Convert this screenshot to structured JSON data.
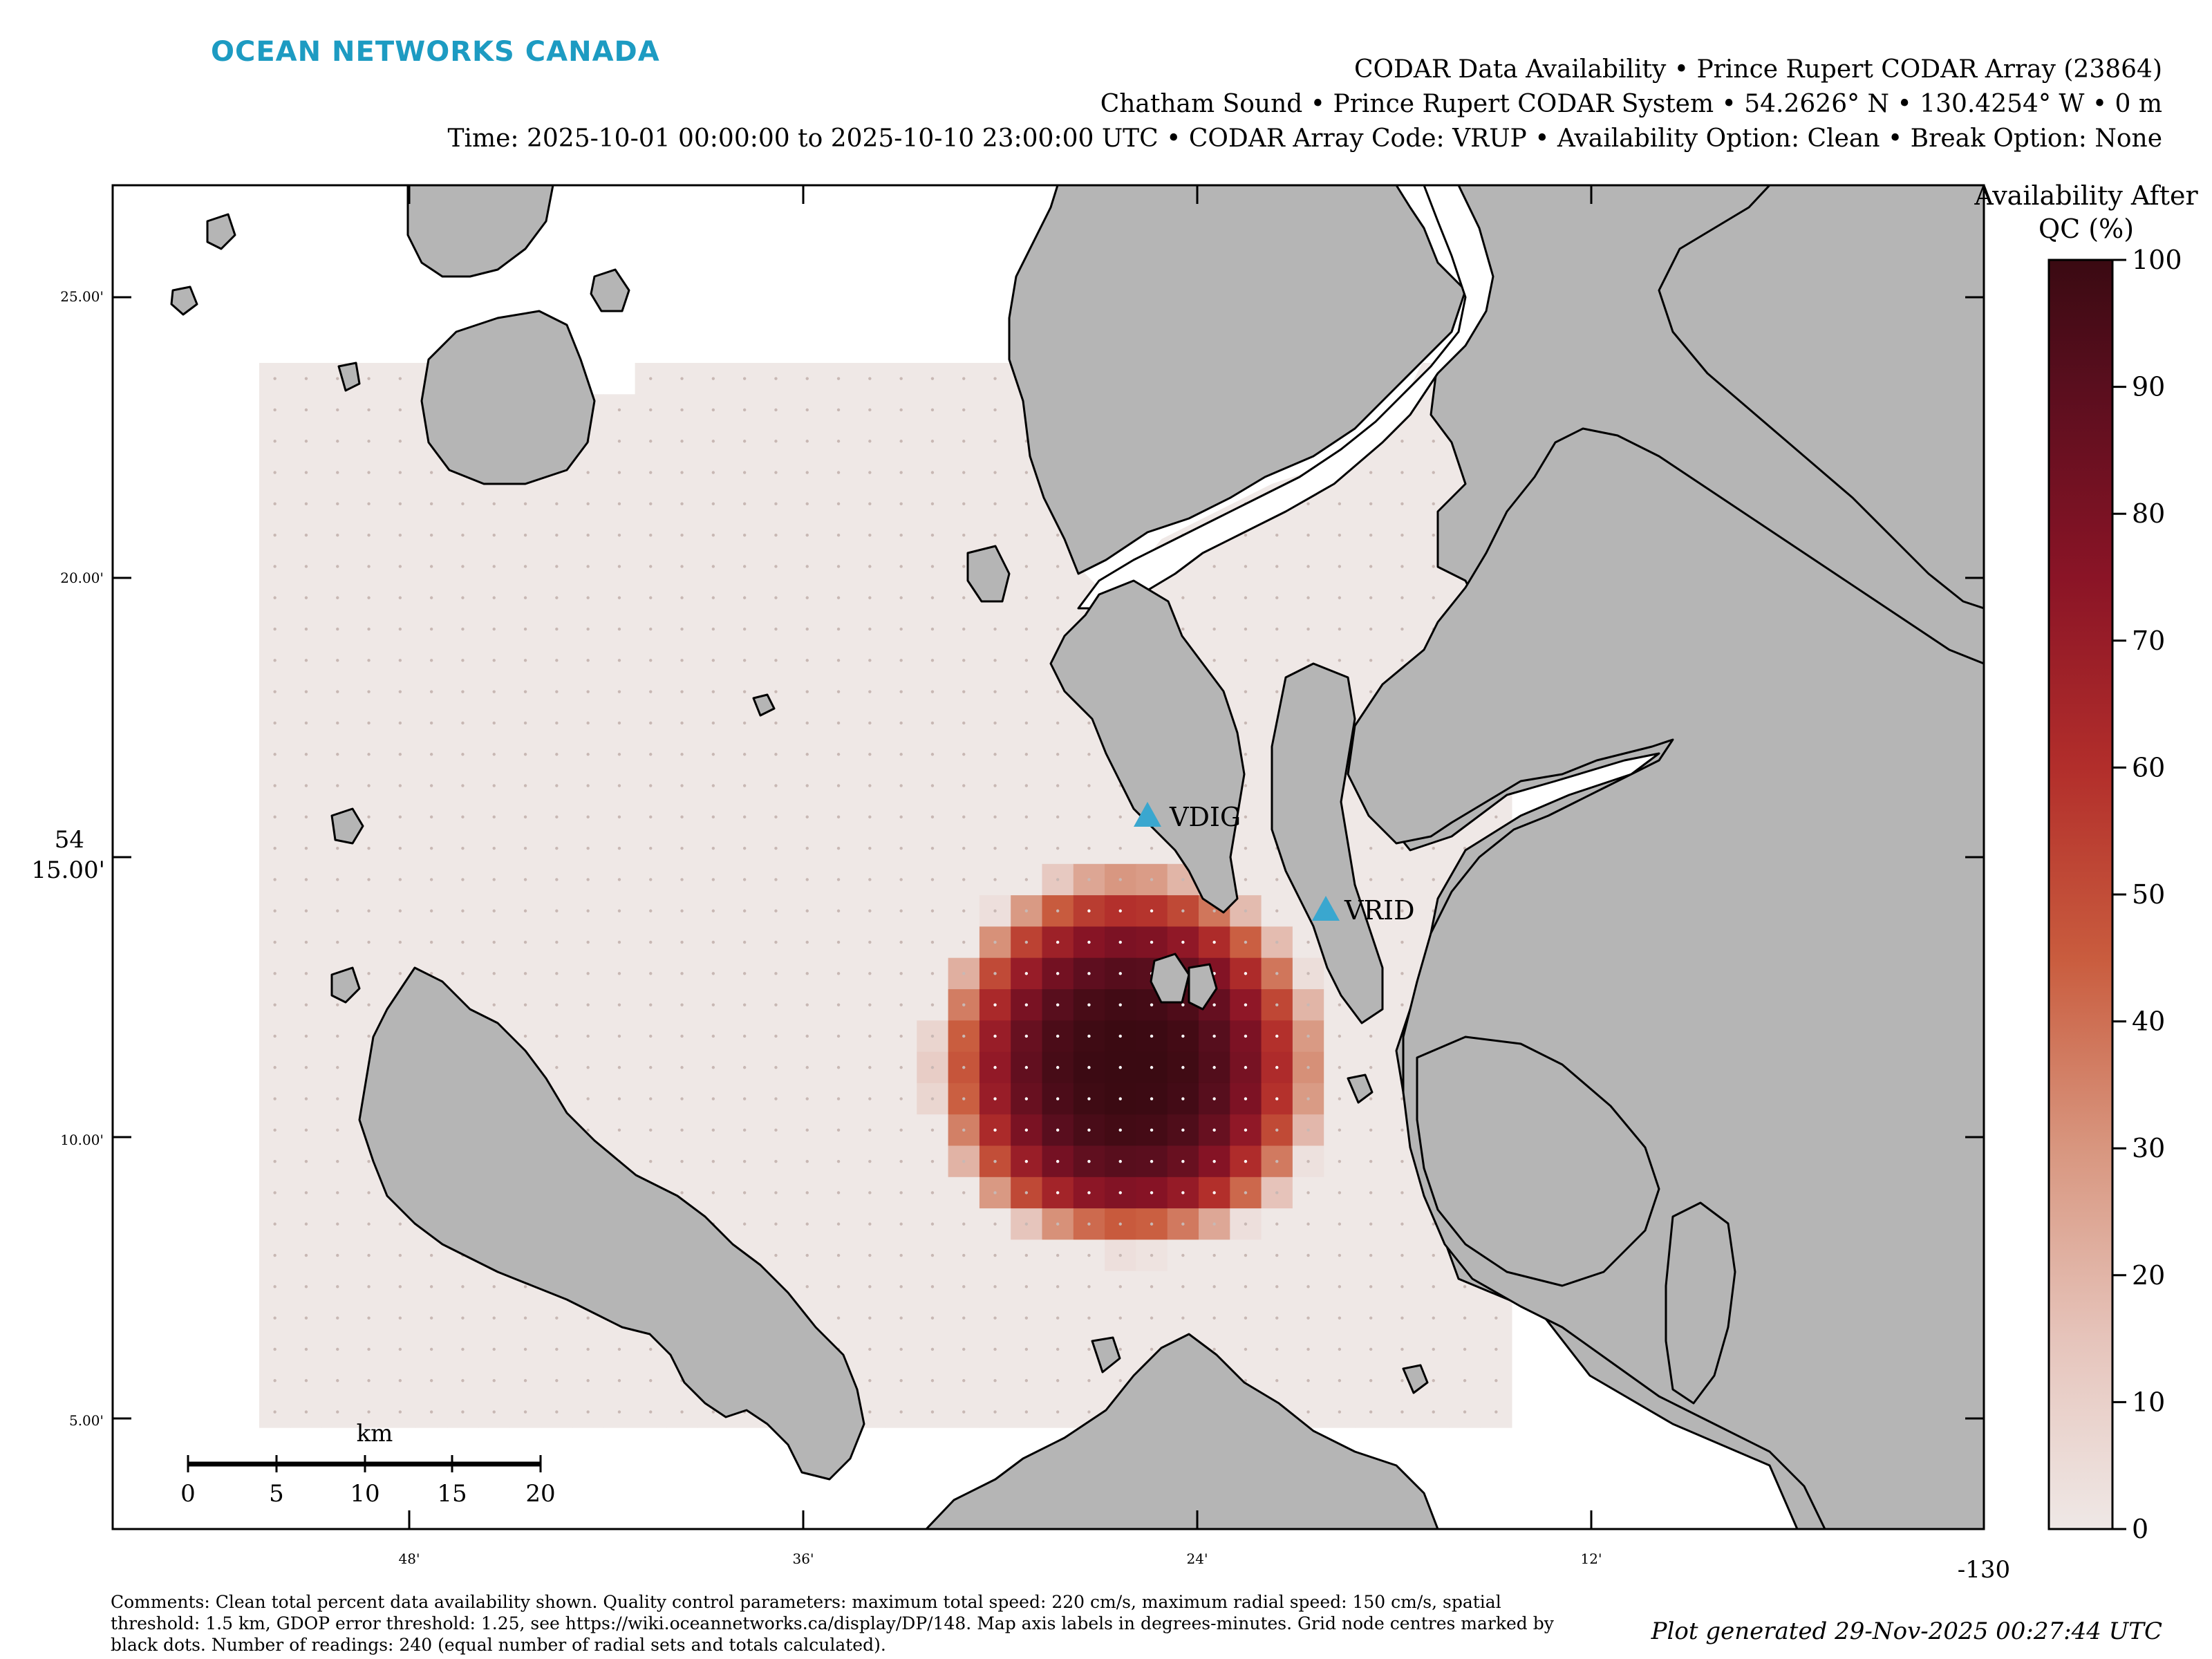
{
  "header": {
    "logo": "OCEAN NETWORKS CANADA",
    "title_line1": "CODAR Data Availability • Prince Rupert CODAR Array (23864)",
    "title_line2": "Chatham Sound • Prince Rupert CODAR System • 54.2626° N • 130.4254° W • 0 m",
    "title_line3": "Time: 2025-10-01 00:00:00 to 2025-10-10 23:00:00 UTC • CODAR Array Code: VRUP • Availability Option: Clean • Break Option: None"
  },
  "map": {
    "y_ticks": [
      "25.00'",
      "20.00'",
      "15.00'",
      "10.00'",
      "5.00'"
    ],
    "y_major_label": "54",
    "x_ticks": [
      "48'",
      "36'",
      "24'",
      "12'"
    ],
    "x_major_label": "-130",
    "stations": [
      {
        "name": "VDIG"
      },
      {
        "name": "VRID"
      }
    ],
    "scale_bar": {
      "unit": "km",
      "ticks": [
        "0",
        "5",
        "10",
        "15",
        "20"
      ]
    }
  },
  "colorbar": {
    "title_line1": "Availability After",
    "title_line2": "QC (%)",
    "ticks": [
      "100",
      "90",
      "80",
      "70",
      "60",
      "50",
      "40",
      "30",
      "20",
      "10",
      "0"
    ]
  },
  "footer": {
    "comments": "Comments: Clean total percent data availability shown. Quality control parameters: maximum total speed: 220 cm/s, maximum radial speed: 150 cm/s, spatial threshold: 1.5 km, GDOP error threshold: 1.25, see https://wiki.oceannetworks.ca/display/DP/148. Map axis labels in degrees-minutes. Grid node centres marked by black dots. Number of readings: 240 (equal number of radial sets and totals calculated).",
    "generated": "Plot generated 29-Nov-2025 00:27:44 UTC"
  },
  "colors": {
    "land": "#b5b5b5",
    "nodata": "#efe8e6",
    "station": "#3aa7cf",
    "logo": "#1d9bc2"
  }
}
